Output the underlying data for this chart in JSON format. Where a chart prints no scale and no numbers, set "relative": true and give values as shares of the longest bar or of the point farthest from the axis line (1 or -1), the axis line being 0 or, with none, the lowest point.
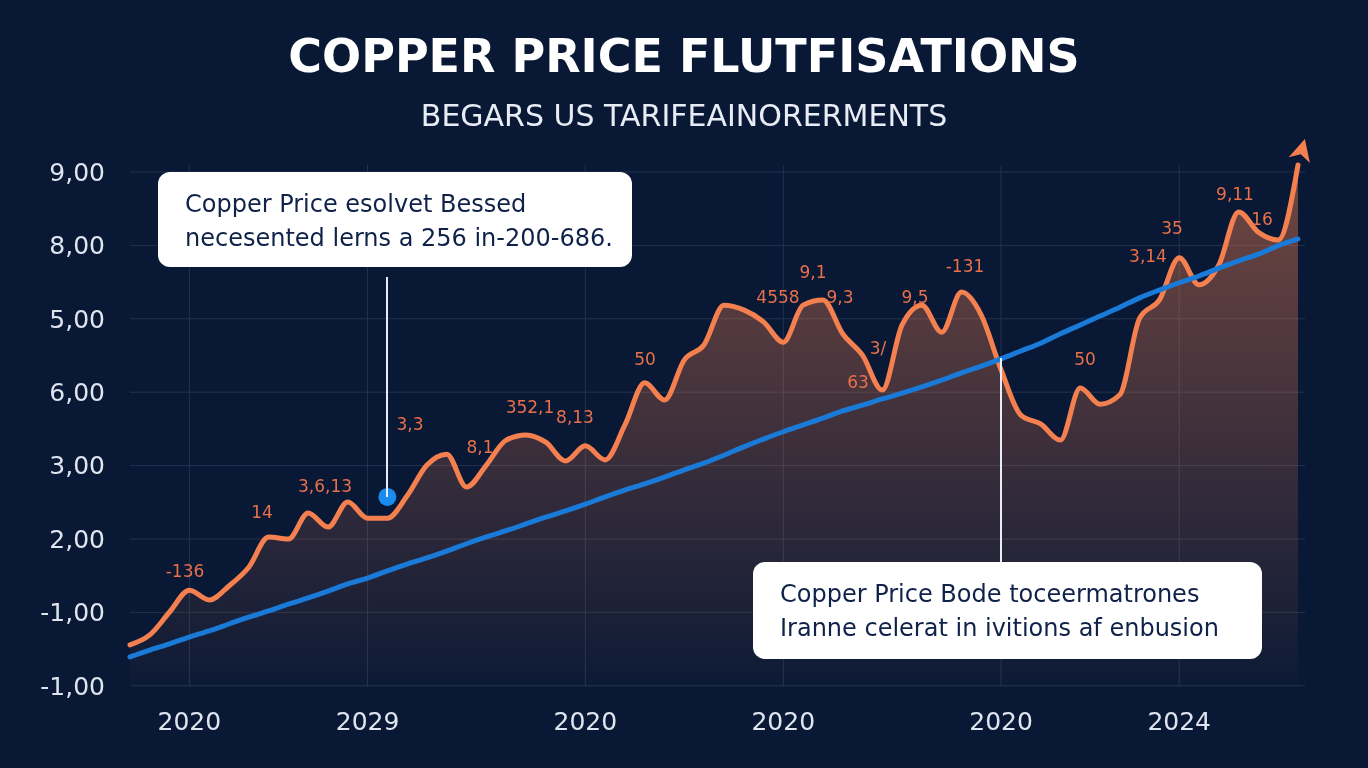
{
  "chart_data": {
    "type": "line",
    "title": "COPPER PRICE FLUTFISATIONS",
    "subtitle": "BEGARS US TARIFEAINORERMENTS",
    "relative": true,
    "categories": [
      null,
      null,
      null,
      "2020",
      null,
      null,
      null,
      null,
      null,
      null,
      null,
      null,
      "2029",
      null,
      null,
      null,
      null,
      null,
      null,
      null,
      null,
      null,
      null,
      "2020",
      null,
      null,
      null,
      null,
      null,
      null,
      null,
      null,
      null,
      "2020",
      null,
      null,
      null,
      null,
      null,
      null,
      null,
      null,
      null,
      null,
      "2020",
      null,
      null,
      null,
      null,
      null,
      null,
      null,
      null,
      "2024",
      null,
      null,
      null,
      null,
      null,
      null
    ],
    "grid": true,
    "line_style": "solid",
    "series": [
      {
        "type": "area",
        "color": "#f4804f",
        "values": [
          0.079,
          0.098,
          0.142,
          0.184,
          0.165,
          0.192,
          0.228,
          0.286,
          0.282,
          0.332,
          0.305,
          0.353,
          0.322,
          0.322,
          0.365,
          0.424,
          0.445,
          0.382,
          0.424,
          0.472,
          0.482,
          0.468,
          0.432,
          0.461,
          0.434,
          0.501,
          0.582,
          0.549,
          0.626,
          0.655,
          0.731,
          0.722,
          0.699,
          0.66,
          0.731,
          0.741,
          0.676,
          0.635,
          0.568,
          0.693,
          0.731,
          0.679,
          0.756,
          0.712,
          0.607,
          0.52,
          0.503,
          0.472,
          0.572,
          0.541,
          0.559,
          0.706,
          0.741,
          0.822,
          0.77,
          0.808,
          0.91,
          0.871,
          0.856,
          1
        ]
      },
      {
        "type": "scatter",
        "color": "#1a8cf0",
        "values": [
          null,
          null,
          null,
          null,
          null,
          null,
          null,
          null,
          null,
          null,
          null,
          null,
          null,
          0.363,
          null,
          null,
          null,
          null,
          null,
          null,
          null,
          null,
          null,
          null,
          null,
          null,
          null,
          null,
          null,
          null,
          null,
          null,
          null,
          null,
          null,
          null,
          null,
          null,
          null,
          null,
          null,
          null,
          null,
          null,
          null,
          null,
          null,
          null,
          null,
          null,
          null,
          null,
          null,
          null,
          null,
          null,
          null,
          null,
          null,
          null
        ]
      },
      {
        "color": "#1a7ad8",
        "values": [
          0.056,
          0.069,
          0.081,
          0.094,
          0.106,
          0.119,
          0.132,
          0.144,
          0.157,
          0.169,
          0.182,
          0.196,
          0.207,
          0.221,
          0.234,
          0.246,
          0.259,
          0.273,
          0.286,
          0.298,
          0.311,
          0.324,
          0.336,
          0.349,
          0.363,
          0.376,
          0.388,
          0.401,
          0.415,
          0.428,
          0.443,
          0.459,
          0.474,
          0.488,
          0.501,
          0.514,
          0.528,
          0.539,
          0.551,
          0.562,
          0.574,
          0.587,
          0.601,
          0.614,
          0.628,
          0.643,
          0.658,
          0.676,
          0.693,
          0.71,
          0.727,
          0.745,
          0.76,
          0.774,
          0.787,
          0.802,
          0.816,
          0.829,
          0.845,
          0.858
        ]
      }
    ],
    "annotations": [
      "Copper Price esolvet Bessed\nnecesented lerns a 256 in-200-686.",
      "Copper Price Bode toceermatrones\nIranne celerat in ivitions af enbusion",
      "9,00",
      "8,00",
      "5,00",
      "6,00",
      "3,00",
      "2,00",
      "-1,00",
      "-1,00",
      "-136",
      "14",
      "3,6,13",
      "3,3",
      "8,1",
      "352,1",
      "8,13",
      "50",
      "4558",
      "9,1",
      "9,3",
      "3/",
      "63",
      "9,5",
      "-131",
      "50",
      "3,14",
      "35",
      "9,11",
      "16"
    ]
  }
}
